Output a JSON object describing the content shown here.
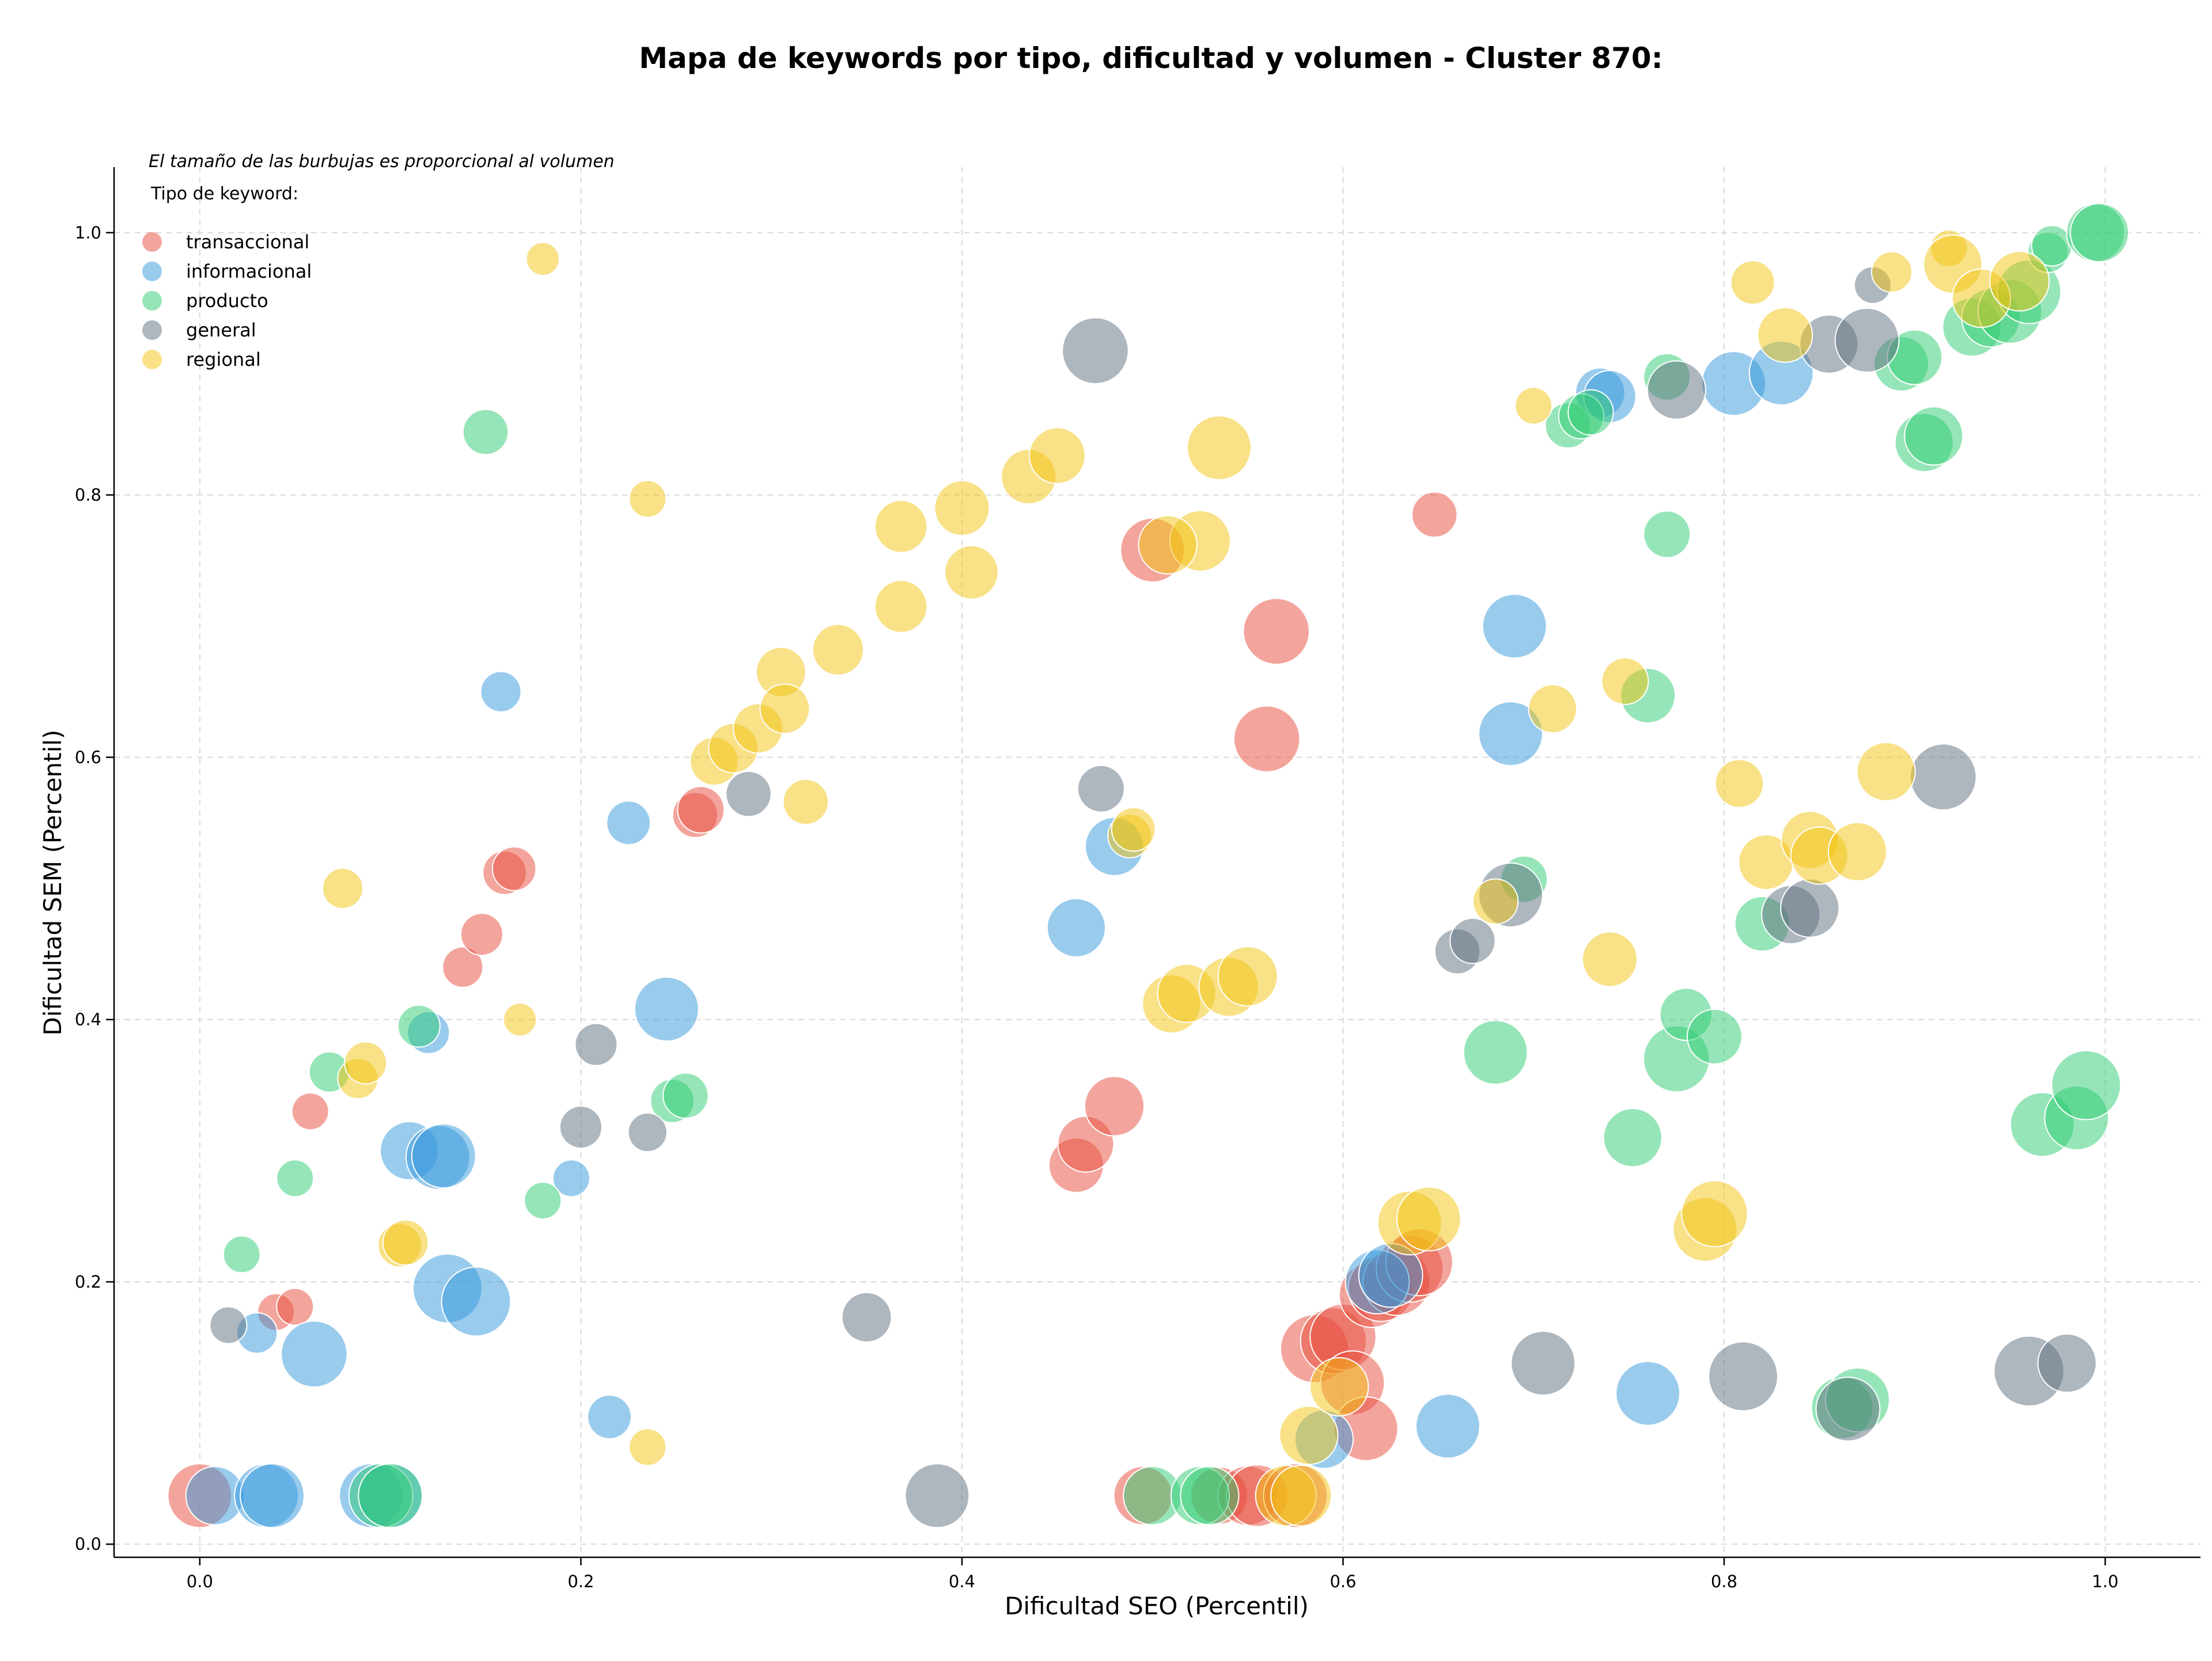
{
  "chart_data": {
    "type": "scatter",
    "title": "Mapa de keywords por tipo, dificultad y volumen - Cluster 870:",
    "xlabel": "Dificultad SEO (Percentil)",
    "ylabel": "Dificultad SEM (Percentil)",
    "note": "El tamaño de las burbujas es proporcional al volumen",
    "legend_title": "Tipo de keyword:",
    "legend_position": "top-left",
    "xlim": [
      -0.045,
      1.05
    ],
    "ylim": [
      -0.01,
      1.05
    ],
    "x_ticks": [
      "0.0",
      "0.2",
      "0.4",
      "0.6",
      "0.8",
      "1.0"
    ],
    "y_ticks": [
      "0.0",
      "0.2",
      "0.4",
      "0.6",
      "0.8",
      "1.0"
    ],
    "x_tick_values": [
      0,
      0.2,
      0.4,
      0.6,
      0.8,
      1.0
    ],
    "y_tick_values": [
      0,
      0.2,
      0.4,
      0.6,
      0.8,
      1.0
    ],
    "grid": true,
    "size_scale": "volume",
    "series": [
      {
        "name": "transaccional",
        "color": "#e74c3c",
        "points": [
          [
            0.0,
            0.037,
            3
          ],
          [
            0.04,
            0.177,
            1
          ],
          [
            0.05,
            0.181,
            1
          ],
          [
            0.058,
            0.33,
            1
          ],
          [
            0.138,
            0.44,
            1.2
          ],
          [
            0.148,
            0.465,
            1.3
          ],
          [
            0.16,
            0.512,
            1.4
          ],
          [
            0.165,
            0.515,
            1.4
          ],
          [
            0.26,
            0.556,
            1.5
          ],
          [
            0.263,
            0.56,
            1.6
          ],
          [
            0.46,
            0.289,
            2.2
          ],
          [
            0.465,
            0.305,
            2.3
          ],
          [
            0.48,
            0.334,
            2.6
          ],
          [
            0.5,
            0.758,
            3
          ],
          [
            0.56,
            0.614,
            3.2
          ],
          [
            0.565,
            0.696,
            3.2
          ],
          [
            0.648,
            0.785,
            1.5
          ],
          [
            0.495,
            0.037,
            2.5
          ],
          [
            0.535,
            0.037,
            2.4
          ],
          [
            0.55,
            0.037,
            2.6
          ],
          [
            0.555,
            0.037,
            2.8
          ],
          [
            0.575,
            0.037,
            3
          ],
          [
            0.585,
            0.149,
            3.4
          ],
          [
            0.595,
            0.155,
            3.2
          ],
          [
            0.6,
            0.158,
            3.2
          ],
          [
            0.605,
            0.123,
            3
          ],
          [
            0.612,
            0.088,
            3
          ],
          [
            0.615,
            0.19,
            3.1
          ],
          [
            0.62,
            0.195,
            3.2
          ],
          [
            0.628,
            0.2,
            3.3
          ],
          [
            0.635,
            0.21,
            3.3
          ],
          [
            0.64,
            0.215,
            3.3
          ]
        ]
      },
      {
        "name": "informacional",
        "color": "#3498db",
        "points": [
          [
            0.008,
            0.037,
            2.5
          ],
          [
            0.03,
            0.161,
            1.2
          ],
          [
            0.035,
            0.037,
            3
          ],
          [
            0.038,
            0.037,
            3
          ],
          [
            0.06,
            0.145,
            3.2
          ],
          [
            0.09,
            0.037,
            3
          ],
          [
            0.1,
            0.037,
            3
          ],
          [
            0.11,
            0.3,
            2.5
          ],
          [
            0.125,
            0.295,
            3
          ],
          [
            0.128,
            0.296,
            3
          ],
          [
            0.13,
            0.195,
            3.5
          ],
          [
            0.145,
            0.185,
            3.5
          ],
          [
            0.158,
            0.65,
            1.2
          ],
          [
            0.12,
            0.39,
            1.3
          ],
          [
            0.195,
            0.279,
            1
          ],
          [
            0.215,
            0.097,
            1.4
          ],
          [
            0.225,
            0.55,
            1.4
          ],
          [
            0.245,
            0.408,
            3
          ],
          [
            0.46,
            0.47,
            2.5
          ],
          [
            0.48,
            0.532,
            2.5
          ],
          [
            0.59,
            0.08,
            2.5
          ],
          [
            0.618,
            0.2,
            3
          ],
          [
            0.625,
            0.205,
            3
          ],
          [
            0.655,
            0.09,
            3
          ],
          [
            0.688,
            0.618,
            3
          ],
          [
            0.69,
            0.7,
            3
          ],
          [
            0.735,
            0.878,
            1.8
          ],
          [
            0.74,
            0.875,
            2
          ],
          [
            0.76,
            0.115,
            3
          ],
          [
            0.805,
            0.885,
            3
          ],
          [
            0.83,
            0.893,
            3
          ]
        ]
      },
      {
        "name": "producto",
        "color": "#2ecc71",
        "points": [
          [
            0.022,
            0.221,
            1
          ],
          [
            0.05,
            0.279,
            1
          ],
          [
            0.068,
            0.36,
            1.2
          ],
          [
            0.095,
            0.037,
            3
          ],
          [
            0.1,
            0.037,
            3
          ],
          [
            0.115,
            0.395,
            1.3
          ],
          [
            0.15,
            0.848,
            1.5
          ],
          [
            0.18,
            0.262,
            1
          ],
          [
            0.248,
            0.338,
            1.4
          ],
          [
            0.255,
            0.342,
            1.5
          ],
          [
            0.5,
            0.037,
            2.5
          ],
          [
            0.525,
            0.037,
            2.5
          ],
          [
            0.53,
            0.037,
            2.5
          ],
          [
            0.68,
            0.375,
            3
          ],
          [
            0.695,
            0.507,
            1.6
          ],
          [
            0.718,
            0.853,
            1.5
          ],
          [
            0.725,
            0.86,
            1.5
          ],
          [
            0.73,
            0.863,
            1.5
          ],
          [
            0.752,
            0.31,
            2.5
          ],
          [
            0.76,
            0.647,
            2.2
          ],
          [
            0.77,
            0.77,
            1.6
          ],
          [
            0.77,
            0.89,
            1.6
          ],
          [
            0.775,
            0.37,
            3.2
          ],
          [
            0.78,
            0.404,
            2
          ],
          [
            0.795,
            0.387,
            2.2
          ],
          [
            0.82,
            0.473,
            2.2
          ],
          [
            0.862,
            0.104,
            2.8
          ],
          [
            0.87,
            0.11,
            3
          ],
          [
            0.893,
            0.9,
            2.2
          ],
          [
            0.9,
            0.905,
            2.2
          ],
          [
            0.905,
            0.84,
            2.5
          ],
          [
            0.91,
            0.845,
            2.5
          ],
          [
            0.93,
            0.928,
            2.5
          ],
          [
            0.94,
            0.935,
            2.5
          ],
          [
            0.95,
            0.94,
            3
          ],
          [
            0.96,
            0.955,
            3
          ],
          [
            0.967,
            0.32,
            3
          ],
          [
            0.97,
            0.985,
            1.2
          ],
          [
            0.972,
            0.99,
            1.2
          ],
          [
            0.985,
            0.325,
            3
          ],
          [
            0.99,
            0.35,
            3.5
          ],
          [
            0.995,
            1.0,
            2.5
          ],
          [
            0.997,
            1.0,
            2.5
          ]
        ]
      },
      {
        "name": "general",
        "color": "#5d6d7e",
        "points": [
          [
            0.015,
            0.167,
            1
          ],
          [
            0.2,
            0.318,
            1.3
          ],
          [
            0.208,
            0.381,
            1.3
          ],
          [
            0.235,
            0.314,
            1.1
          ],
          [
            0.288,
            0.572,
            1.5
          ],
          [
            0.35,
            0.173,
            1.8
          ],
          [
            0.387,
            0.037,
            3
          ],
          [
            0.47,
            0.91,
            3.2
          ],
          [
            0.473,
            0.576,
            1.6
          ],
          [
            0.688,
            0.495,
            3
          ],
          [
            0.66,
            0.452,
            1.5
          ],
          [
            0.668,
            0.46,
            1.5
          ],
          [
            0.705,
            0.138,
            3
          ],
          [
            0.775,
            0.88,
            2.5
          ],
          [
            0.81,
            0.128,
            3.5
          ],
          [
            0.835,
            0.48,
            2.5
          ],
          [
            0.845,
            0.485,
            2.5
          ],
          [
            0.855,
            0.915,
            2.5
          ],
          [
            0.865,
            0.103,
            3
          ],
          [
            0.875,
            0.918,
            3
          ],
          [
            0.878,
            0.96,
            1
          ],
          [
            0.915,
            0.585,
            3.2
          ],
          [
            0.96,
            0.132,
            3.6
          ],
          [
            0.98,
            0.138,
            2.5
          ]
        ]
      },
      {
        "name": "regional",
        "color": "#f1c40f",
        "points": [
          [
            0.075,
            0.5,
            1.2
          ],
          [
            0.083,
            0.355,
            1.2
          ],
          [
            0.087,
            0.367,
            1.3
          ],
          [
            0.105,
            0.228,
            1.4
          ],
          [
            0.108,
            0.23,
            1.5
          ],
          [
            0.168,
            0.4,
            0.8
          ],
          [
            0.18,
            0.98,
            0.8
          ],
          [
            0.235,
            0.797,
            1
          ],
          [
            0.235,
            0.074,
            1
          ],
          [
            0.27,
            0.597,
            1.7
          ],
          [
            0.28,
            0.607,
            1.8
          ],
          [
            0.293,
            0.622,
            1.8
          ],
          [
            0.305,
            0.665,
            1.8
          ],
          [
            0.307,
            0.637,
            1.8
          ],
          [
            0.318,
            0.566,
            1.5
          ],
          [
            0.335,
            0.682,
            1.9
          ],
          [
            0.368,
            0.715,
            2
          ],
          [
            0.368,
            0.776,
            2
          ],
          [
            0.4,
            0.79,
            2.2
          ],
          [
            0.405,
            0.741,
            2.1
          ],
          [
            0.435,
            0.814,
            2.2
          ],
          [
            0.45,
            0.83,
            2.3
          ],
          [
            0.488,
            0.54,
            1.4
          ],
          [
            0.49,
            0.545,
            1.4
          ],
          [
            0.51,
            0.412,
            2.5
          ],
          [
            0.518,
            0.42,
            2.5
          ],
          [
            0.525,
            0.765,
            2.7
          ],
          [
            0.508,
            0.762,
            2.5
          ],
          [
            0.535,
            0.836,
            3
          ],
          [
            0.54,
            0.425,
            2.6
          ],
          [
            0.55,
            0.433,
            2.6
          ],
          [
            0.57,
            0.037,
            2.7
          ],
          [
            0.578,
            0.037,
            2.7
          ],
          [
            0.582,
            0.083,
            2.5
          ],
          [
            0.598,
            0.12,
            2.5
          ],
          [
            0.635,
            0.245,
            3
          ],
          [
            0.645,
            0.248,
            3
          ],
          [
            0.68,
            0.49,
            1.5
          ],
          [
            0.7,
            0.868,
            1
          ],
          [
            0.71,
            0.637,
            1.7
          ],
          [
            0.74,
            0.446,
            2.2
          ],
          [
            0.748,
            0.658,
            1.6
          ],
          [
            0.79,
            0.24,
            3
          ],
          [
            0.795,
            0.252,
            3.2
          ],
          [
            0.808,
            0.58,
            1.7
          ],
          [
            0.815,
            0.962,
            1.4
          ],
          [
            0.822,
            0.52,
            2.2
          ],
          [
            0.832,
            0.922,
            2.2
          ],
          [
            0.845,
            0.537,
            2.4
          ],
          [
            0.85,
            0.525,
            2.4
          ],
          [
            0.87,
            0.528,
            2.5
          ],
          [
            0.885,
            0.589,
            2.5
          ],
          [
            0.888,
            0.97,
            1.2
          ],
          [
            0.918,
            0.988,
            1
          ],
          [
            0.92,
            0.976,
            2.5
          ],
          [
            0.935,
            0.95,
            2.5
          ],
          [
            0.955,
            0.963,
            2.6
          ]
        ]
      }
    ]
  }
}
